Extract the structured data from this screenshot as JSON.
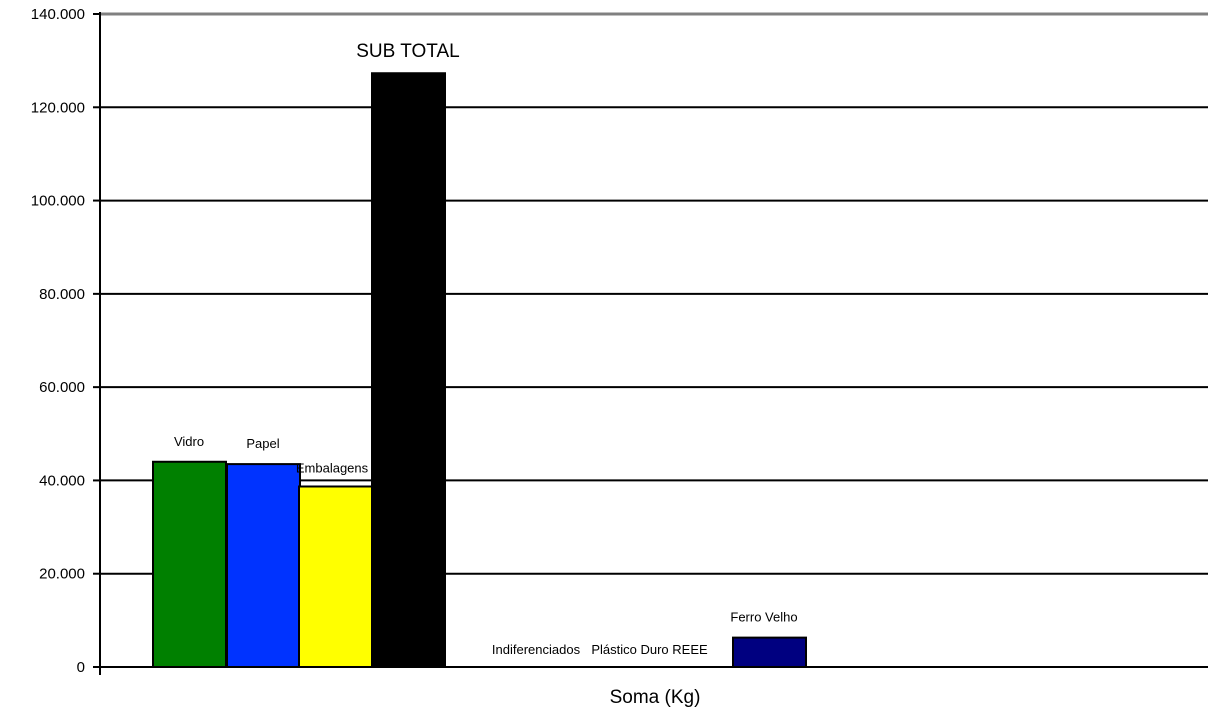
{
  "chart_data": {
    "type": "bar",
    "xlabel": "Soma (Kg)",
    "ylabel": "",
    "ylim": [
      0,
      140000
    ],
    "yticks": [
      0,
      20000,
      40000,
      60000,
      80000,
      100000,
      120000,
      140000
    ],
    "ytick_labels": [
      "0",
      "20.000",
      "40.000",
      "60.000",
      "80.000",
      "100.000",
      "120.000",
      "140.000"
    ],
    "grid": true,
    "categories": [
      "Vidro",
      "Papel",
      "Embalagens",
      "SUB TOTAL",
      "Indiferenciados",
      "Plástico Duro",
      "REEE",
      "Ferro Velho"
    ],
    "values": [
      44000,
      43500,
      38700,
      127300,
      0,
      0,
      0,
      6300
    ],
    "colors": [
      "#008000",
      "#0033ff",
      "#ffff00",
      "#000000",
      "#ffffff",
      "#ffffff",
      "#ffffff",
      "#000080"
    ]
  }
}
